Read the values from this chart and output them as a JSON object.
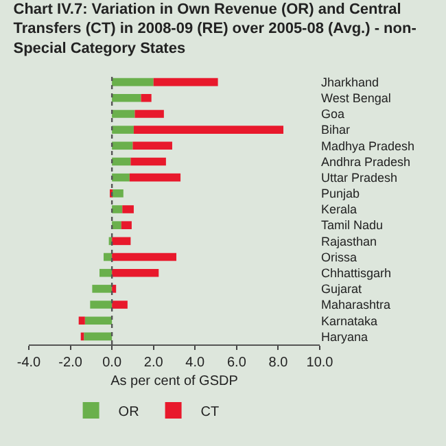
{
  "chart_data": {
    "type": "bar",
    "orientation": "horizontal",
    "stacked": true,
    "title": "Chart IV.7: Variation in Own Revenue (OR) and Central Transfers (CT) in 2008-09 (RE) over 2005-08 (Avg.) - non-Special Category States",
    "xlabel": "As per cent of GSDP",
    "categories": [
      "Jharkhand",
      "West Bengal",
      "Goa",
      "Bihar",
      "Madhya Pradesh",
      "Andhra Pradesh",
      "Uttar Pradesh",
      "Punjab",
      "Kerala",
      "Tamil Nadu",
      "Rajasthan",
      "Orissa",
      "Chhattisgarh",
      "Gujarat",
      "Maharashtra",
      "Karnataka",
      "Haryana"
    ],
    "series": [
      {
        "name": "OR",
        "color": "#6ab04c",
        "values": [
          2.0,
          1.4,
          1.1,
          1.05,
          1.0,
          0.9,
          0.85,
          0.55,
          0.5,
          0.45,
          -0.15,
          -0.4,
          -0.6,
          -0.95,
          -1.05,
          -1.3,
          -1.35
        ]
      },
      {
        "name": "CT",
        "color": "#e8192c",
        "values": [
          3.1,
          0.5,
          1.4,
          7.2,
          1.9,
          1.7,
          2.45,
          -0.1,
          0.55,
          0.5,
          0.9,
          3.1,
          2.25,
          0.2,
          0.75,
          -0.3,
          -0.15
        ]
      }
    ],
    "xlim": [
      -4,
      10
    ],
    "xticks": [
      {
        "value": -4,
        "label": "-4.0"
      },
      {
        "value": -2,
        "label": "-2.0"
      },
      {
        "value": 0,
        "label": "0.0"
      },
      {
        "value": 2,
        "label": "2.0"
      },
      {
        "value": 4,
        "label": "4.0"
      },
      {
        "value": 6,
        "label": "6.0"
      },
      {
        "value": 8,
        "label": "8.0"
      },
      {
        "value": 10,
        "label": "10.0"
      }
    ],
    "ref_lines": [
      {
        "axis": "x",
        "value": 0,
        "color": "#555555",
        "line_style": "dotted"
      }
    ],
    "grid": false,
    "legend": "bottom"
  }
}
